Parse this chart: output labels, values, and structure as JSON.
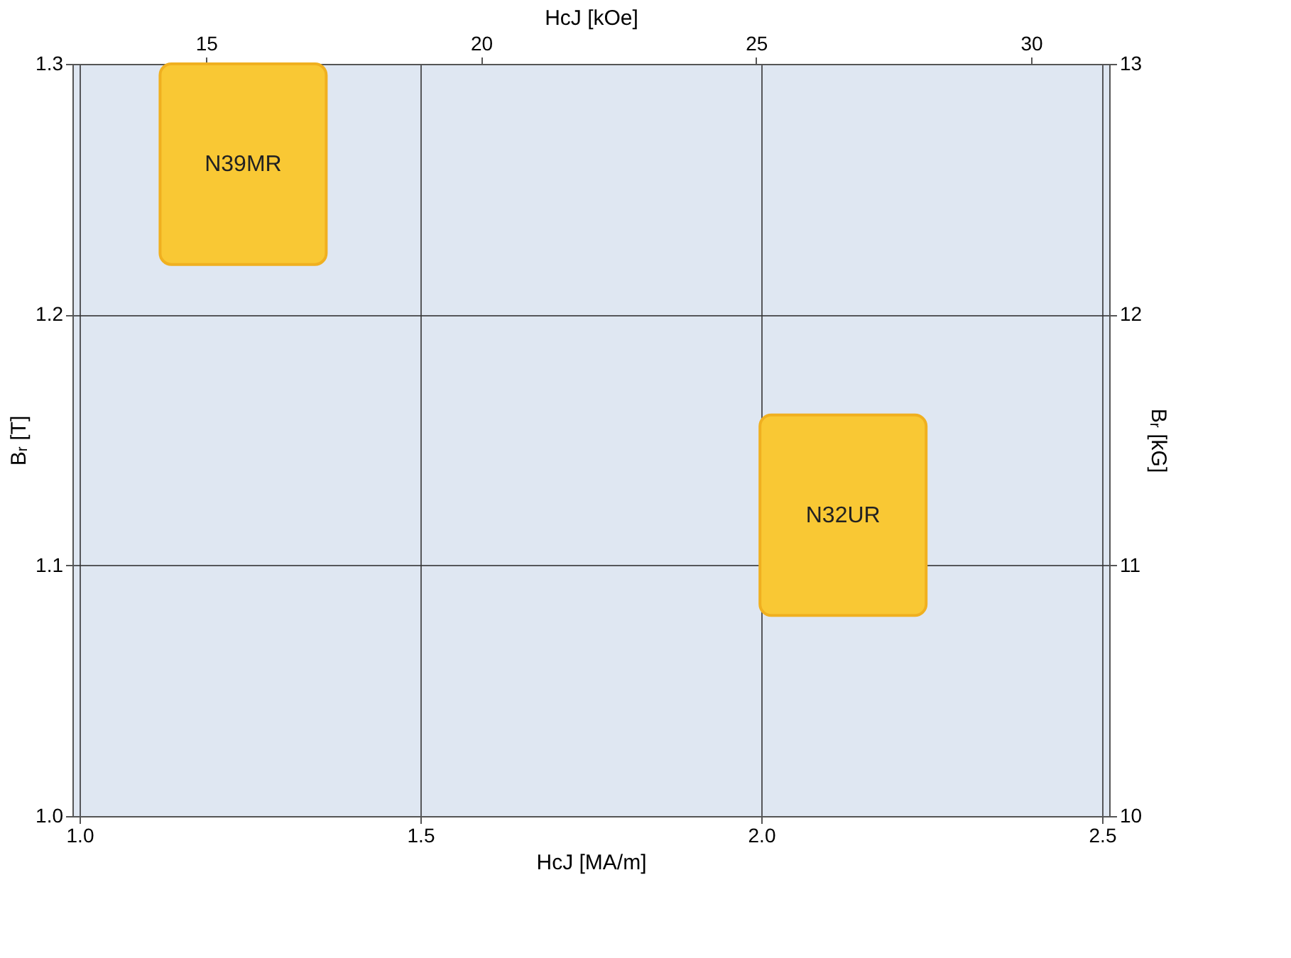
{
  "chart_data": {
    "type": "bar",
    "xlabel": "HcJ  [MA/m]",
    "ylabel": "Bᵣ  [T]",
    "x2label": "HcJ  [kOe]",
    "y2label": "Bᵣ  [kG]",
    "xlim": [
      1.0,
      2.5
    ],
    "xticks": [
      {
        "value": 1.0,
        "label": "1.0"
      },
      1.5,
      {
        "value": 2.0,
        "label": "2.0"
      },
      2.5
    ],
    "ylim": [
      1.0,
      1.3
    ],
    "yticks": [
      {
        "value": 1.0,
        "label": "1.0"
      },
      1.1,
      1.2,
      1.3
    ],
    "x2lim": [
      12.57,
      31.42
    ],
    "x2ticks": [
      15,
      20,
      25,
      30
    ],
    "y2lim": [
      10,
      13
    ],
    "y2ticks": [
      10,
      11,
      12,
      13
    ],
    "grid": true,
    "series": [
      {
        "name": "N39MR",
        "color": "#f9c834",
        "x": [
          1.24
        ],
        "base": [
          1.22
        ],
        "values": [
          0.08
        ]
      },
      {
        "name": "N32UR",
        "color": "#f9c834",
        "x": [
          2.12
        ],
        "base": [
          1.08
        ],
        "values": [
          0.08
        ]
      }
    ]
  }
}
